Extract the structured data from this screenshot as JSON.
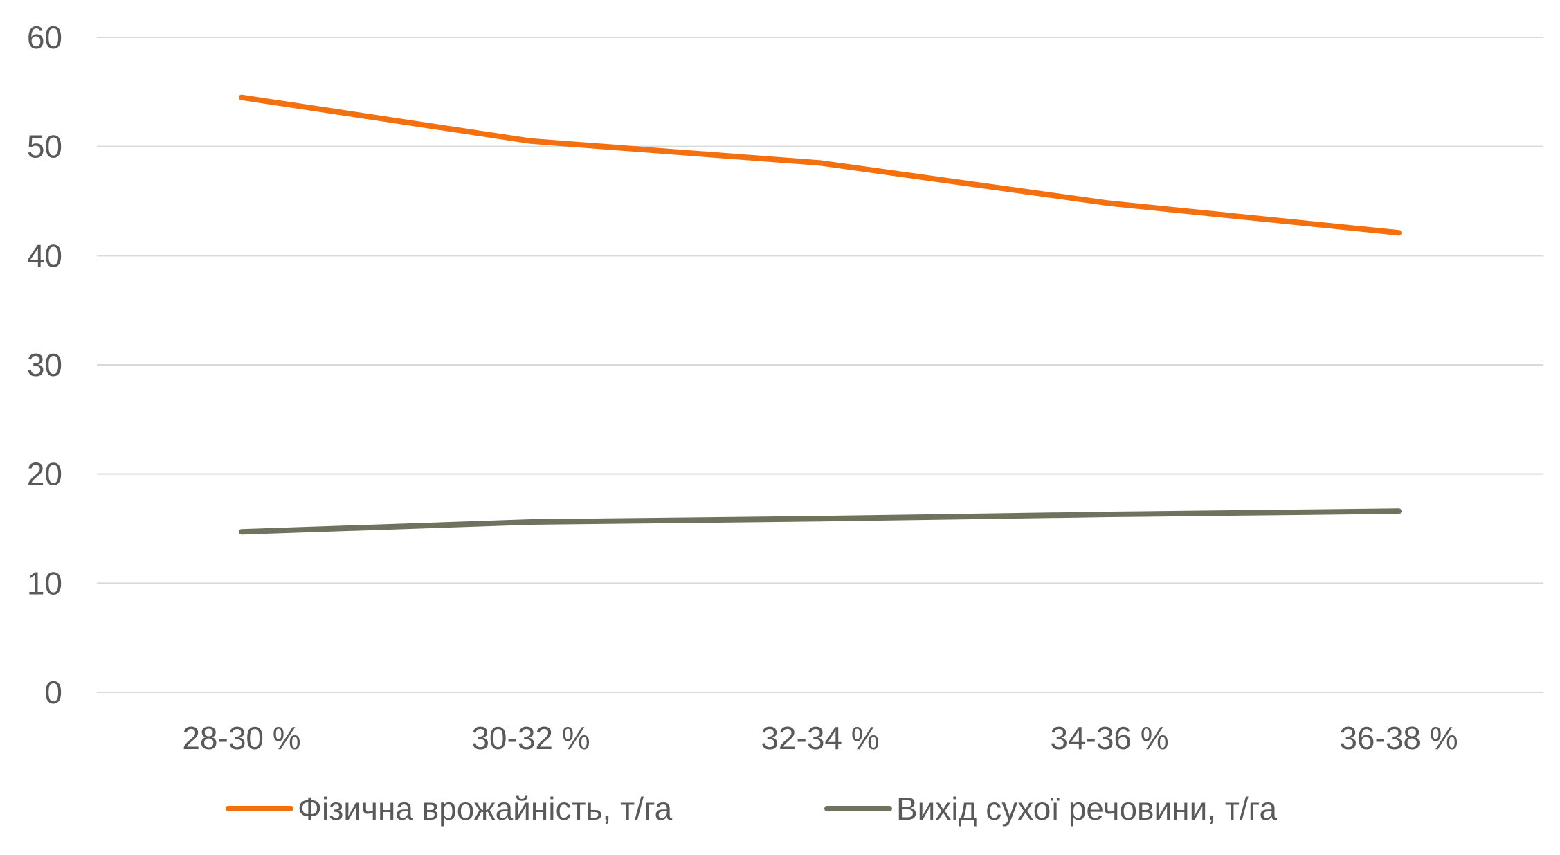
{
  "chart_data": {
    "type": "line",
    "categories": [
      "28-30 %",
      "30-32 %",
      "32-34 %",
      "34-36 %",
      "36-38 %"
    ],
    "series": [
      {
        "name": "Фізична врожайність, т/га",
        "values": [
          54.5,
          50.5,
          48.5,
          44.8,
          42.1
        ],
        "color": "#F4700F"
      },
      {
        "name": "Вихід сухої речовини, т/га",
        "values": [
          14.7,
          15.6,
          15.9,
          16.3,
          16.6
        ],
        "color": "#6E735D"
      }
    ],
    "ylim": [
      0,
      60
    ],
    "yticks": [
      "0",
      "10",
      "20",
      "30",
      "40",
      "50",
      "60"
    ],
    "grid": true,
    "grid_color": "#D9D9D9",
    "text_color": "#595959",
    "legend_position": "bottom",
    "title": "",
    "xlabel": "",
    "ylabel": ""
  }
}
